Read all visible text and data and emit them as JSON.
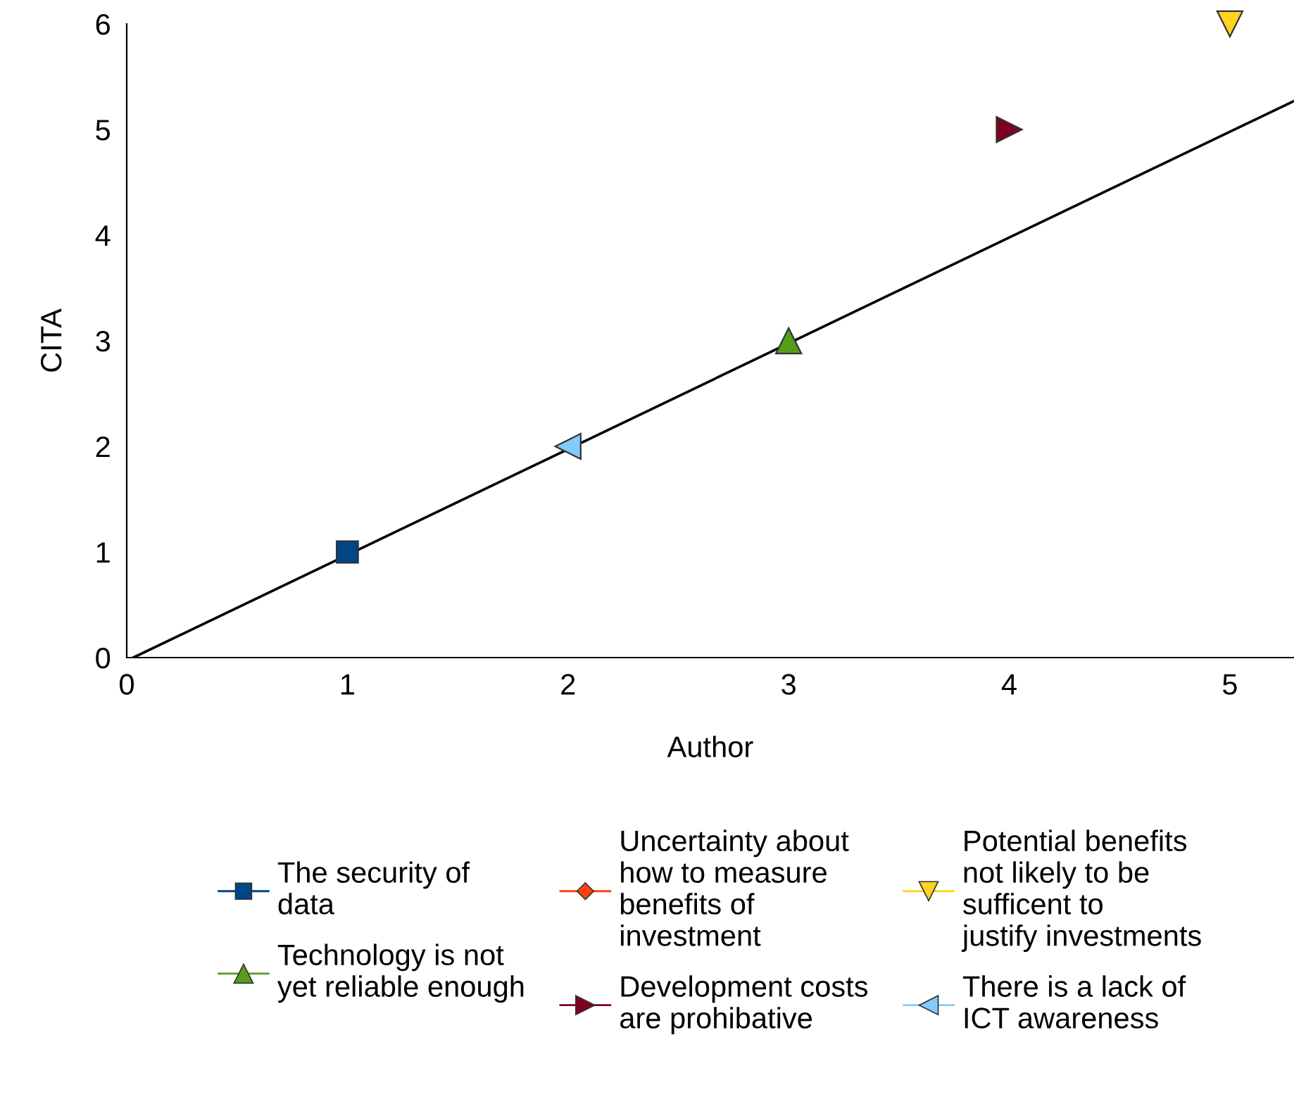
{
  "chart_data": {
    "type": "scatter",
    "xlabel": "Author",
    "ylabel": "CITA",
    "xlim": [
      0,
      5.29
    ],
    "ylim": [
      0,
      6
    ],
    "xticks": [
      0,
      1,
      2,
      3,
      4,
      5
    ],
    "yticks": [
      0,
      1,
      2,
      3,
      4,
      5,
      6
    ],
    "grid": false,
    "legend": "bottom",
    "series": [
      {
        "name": "The security of data",
        "color": "#004586",
        "marker": "square",
        "x": [
          1
        ],
        "values": [
          1
        ]
      },
      {
        "name": "Uncertainty about how to measure benefits of investment",
        "color": "#ff420e",
        "marker": "diamond"
      },
      {
        "name": "Potential benefits not likely to be sufficent to justify investments",
        "color": "#ffd320",
        "marker": "triangle_down",
        "x": [
          5
        ],
        "values": [
          6
        ]
      },
      {
        "name": "Technology is not yet reliable enough",
        "color": "#579d1c",
        "marker": "triangle",
        "x": [
          3
        ],
        "values": [
          3
        ]
      },
      {
        "name": "Development costs are prohibative",
        "color": "#7e0021",
        "marker": "triangle_right",
        "x": [
          4
        ],
        "values": [
          5
        ]
      },
      {
        "name": "There is a lack of ICT awareness",
        "color": "#83caff",
        "marker": "triangle_left",
        "x": [
          2
        ],
        "values": [
          2
        ]
      },
      {
        "type": "line",
        "color": "#000000",
        "marker": "none",
        "x": [
          0.03,
          5.29
        ],
        "values": [
          0,
          5.27
        ]
      }
    ]
  }
}
